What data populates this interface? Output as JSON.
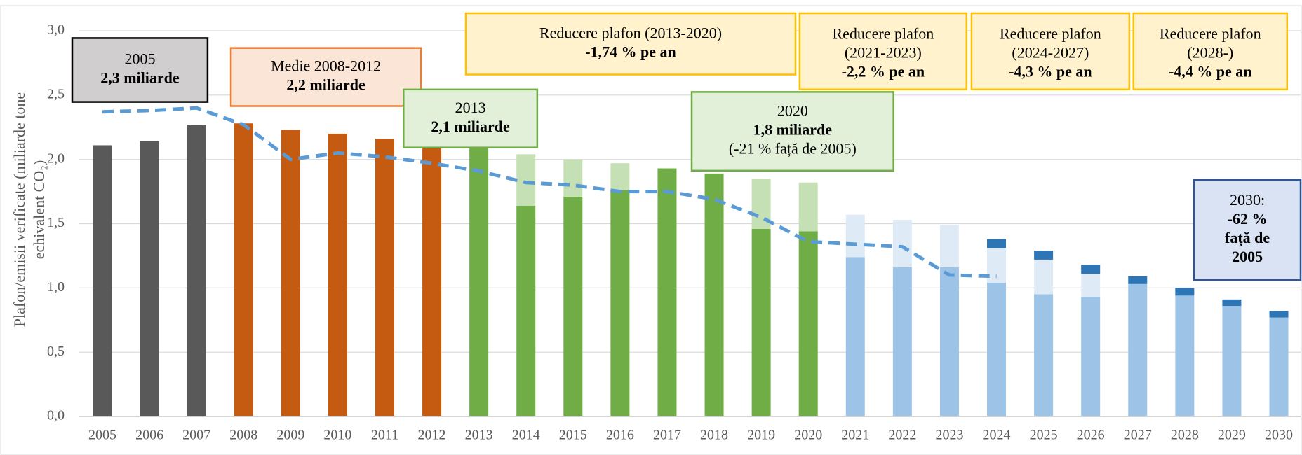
{
  "chart_data": {
    "type": "bar",
    "ylabel": [
      "Plafon/emisii verificate (miliarde tone",
      "echivalent CO₂)"
    ],
    "categories": [
      "2005",
      "2006",
      "2007",
      "2008",
      "2009",
      "2010",
      "2011",
      "2012",
      "2013",
      "2014",
      "2015",
      "2016",
      "2017",
      "2018",
      "2019",
      "2020",
      "2021",
      "2022",
      "2023",
      "2024",
      "2025",
      "2026",
      "2027",
      "2028",
      "2029",
      "2030"
    ],
    "ylim": [
      0,
      3.0
    ],
    "yticks": [
      {
        "value": 0,
        "label": "0,0"
      },
      {
        "value": 0.5,
        "label": "0,5"
      },
      {
        "value": 1.0,
        "label": "1,0"
      },
      {
        "value": 1.5,
        "label": "1,5"
      },
      {
        "value": 2.0,
        "label": "2,0"
      },
      {
        "value": 2.5,
        "label": "2,5"
      },
      {
        "value": 3.0,
        "label": "3,0"
      }
    ],
    "grid": true,
    "series": [
      {
        "colors": [
          "#595959",
          "#595959",
          "#595959",
          "#c55a11",
          "#c55a11",
          "#c55a11",
          "#c55a11",
          "#c55a11",
          "#70ad47",
          "#70ad47",
          "#70ad47",
          "#70ad47",
          "#70ad47",
          "#70ad47",
          "#70ad47",
          "#70ad47",
          "#9dc3e6",
          "#9dc3e6",
          "#9dc3e6",
          "#9dc3e6",
          "#9dc3e6",
          "#9dc3e6",
          "#9dc3e6",
          "#9dc3e6",
          "#9dc3e6",
          "#9dc3e6"
        ],
        "values": [
          2.11,
          2.14,
          2.27,
          2.28,
          2.23,
          2.2,
          2.16,
          2.11,
          2.09,
          1.64,
          1.71,
          1.76,
          1.93,
          1.89,
          1.46,
          1.44,
          1.24,
          1.16,
          1.16,
          1.04,
          0.95,
          0.93,
          1.03,
          0.94,
          0.86,
          0.77
        ]
      },
      {
        "colors": [
          null,
          null,
          null,
          null,
          null,
          null,
          null,
          null,
          null,
          "#c5e0b4",
          "#c5e0b4",
          "#c5e0b4",
          null,
          null,
          "#c5e0b4",
          "#c5e0b4",
          "#deebf7",
          "#deebf7",
          "#deebf7",
          "#deebf7",
          "#deebf7",
          "#deebf7",
          null,
          null,
          null,
          null
        ],
        "values": [
          null,
          null,
          null,
          null,
          null,
          null,
          null,
          null,
          null,
          0.4,
          0.29,
          0.21,
          null,
          null,
          0.39,
          0.38,
          0.33,
          0.37,
          0.33,
          0.27,
          0.27,
          0.18,
          null,
          null,
          null,
          null
        ]
      },
      {
        "color": "#2e75b6",
        "values": [
          null,
          null,
          null,
          null,
          null,
          null,
          null,
          null,
          null,
          null,
          null,
          null,
          null,
          null,
          null,
          null,
          null,
          null,
          null,
          0.07,
          0.07,
          0.07,
          0.06,
          0.06,
          0.05,
          0.05
        ]
      }
    ],
    "line": {
      "type": "line",
      "color": "#5b9bd5",
      "dashed": true,
      "values": [
        2.37,
        2.38,
        2.4,
        2.27,
        2.0,
        2.05,
        2.02,
        1.97,
        1.91,
        1.82,
        1.8,
        1.75,
        1.75,
        1.69,
        1.55,
        1.36,
        1.34,
        1.32,
        1.1,
        1.09,
        null,
        null,
        null,
        null,
        null,
        null
      ]
    },
    "annotations": [
      {
        "lines": [
          "2005",
          "2,3 miliarde"
        ],
        "bold": [
          1
        ],
        "fill": "#d0cece",
        "border": "#000000"
      },
      {
        "lines": [
          "Medie 2008-2012",
          "2,2 miliarde"
        ],
        "bold": [
          1
        ],
        "fill": "#fbe5d6",
        "border": "#ed7d31"
      },
      {
        "lines": [
          "2013",
          "2,1 miliarde"
        ],
        "bold": [
          1
        ],
        "fill": "#e2f0d9",
        "border": "#70ad47"
      },
      {
        "lines": [
          "Reducere plafon (2013-2020)",
          "-1,74 % pe an"
        ],
        "bold": [
          1
        ],
        "fill": "#fff2cc",
        "border": "#ffc000"
      },
      {
        "lines": [
          "Reducere plafon",
          "(2021-2023)",
          "-2,2 % pe an"
        ],
        "bold": [
          2
        ],
        "fill": "#fff2cc",
        "border": "#ffc000"
      },
      {
        "lines": [
          "Reducere plafon",
          "(2024-2027)",
          "-4,3 % pe an"
        ],
        "bold": [
          2
        ],
        "fill": "#fff2cc",
        "border": "#ffc000"
      },
      {
        "lines": [
          "Reducere plafon",
          "(2028-)",
          "-4,4 % pe an"
        ],
        "bold": [
          2
        ],
        "fill": "#fff2cc",
        "border": "#ffc000"
      },
      {
        "lines": [
          "2020",
          "1,8 miliarde",
          "(-21 % față de 2005)"
        ],
        "bold": [
          1
        ],
        "fill": "#e2f0d9",
        "border": "#70ad47"
      },
      {
        "lines": [
          "2030:",
          "-62 %",
          "față de",
          "2005"
        ],
        "bold": [
          1,
          2,
          3
        ],
        "fill": "#dae3f3",
        "border": "#2f5597"
      }
    ]
  }
}
